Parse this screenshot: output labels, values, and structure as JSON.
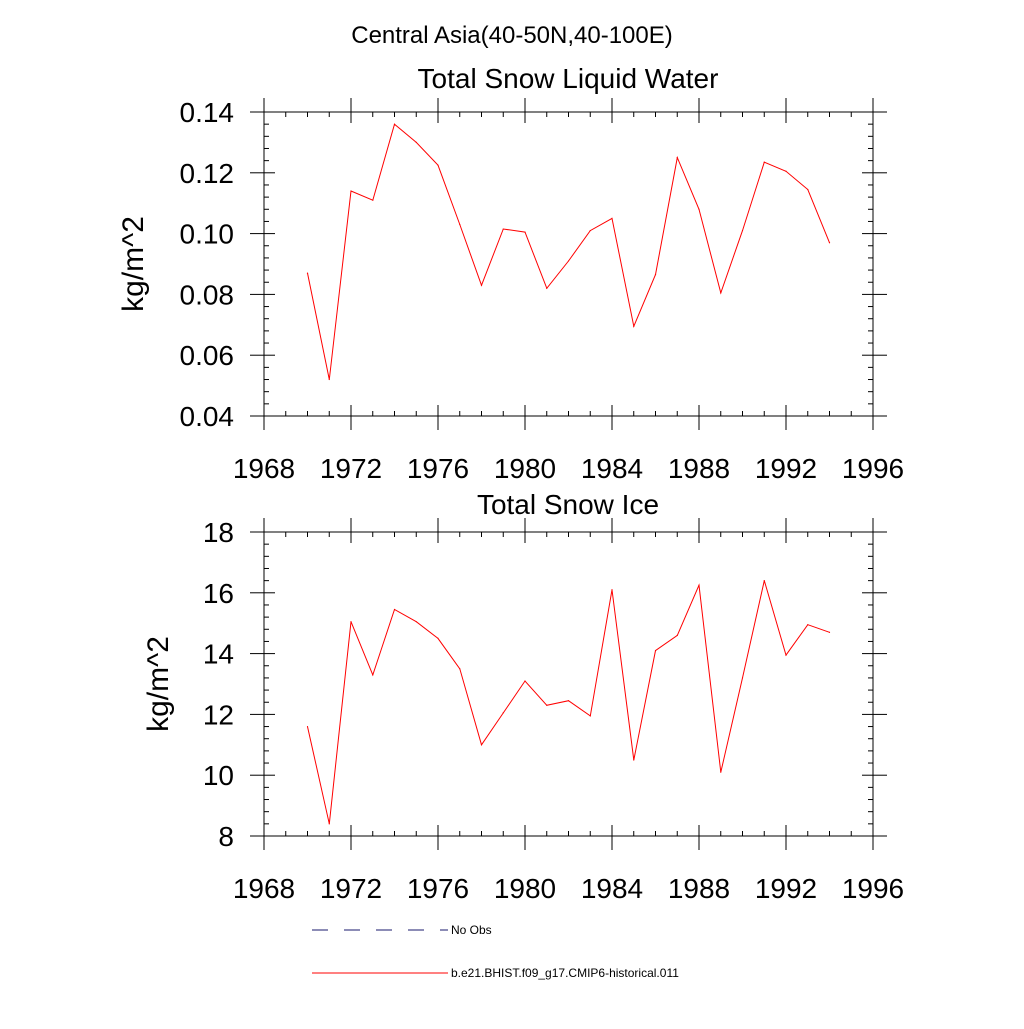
{
  "figure": {
    "title": "Central Asia(40-50N,40-100E)"
  },
  "chart_data": [
    {
      "type": "line",
      "title": "Total Snow Liquid Water",
      "xlabel": "",
      "ylabel": "kg/m^2",
      "xlim": [
        1968,
        1996
      ],
      "ylim": [
        0.04,
        0.14
      ],
      "xticks": [
        1968,
        1972,
        1976,
        1980,
        1984,
        1988,
        1992,
        1996
      ],
      "xticklabels": [
        "1968",
        "1972",
        "1976",
        "1980",
        "1984",
        "1988",
        "1992",
        "1996"
      ],
      "yticks": [
        0.04,
        0.06,
        0.08,
        0.1,
        0.12,
        0.14
      ],
      "yticklabels": [
        "0.04",
        "0.06",
        "0.08",
        "0.10",
        "0.12",
        "0.14"
      ],
      "grid": false,
      "x": [
        1970,
        1971,
        1972,
        1973,
        1974,
        1975,
        1976,
        1977,
        1978,
        1979,
        1980,
        1981,
        1982,
        1983,
        1984,
        1985,
        1986,
        1987,
        1988,
        1989,
        1990,
        1991,
        1992,
        1993,
        1994
      ],
      "series": [
        {
          "name": "b.e21.BHIST.f09_g17.CMIP6-historical.011",
          "color": "#ff0000",
          "values": [
            0.087,
            0.052,
            0.114,
            0.111,
            0.136,
            0.13,
            0.1225,
            0.103,
            0.083,
            0.1015,
            0.1005,
            0.082,
            0.091,
            0.101,
            0.105,
            0.0695,
            0.0865,
            0.125,
            0.108,
            0.0805,
            0.101,
            0.1235,
            0.1205,
            0.1145,
            0.097
          ]
        }
      ]
    },
    {
      "type": "line",
      "title": "Total Snow Ice",
      "xlabel": "",
      "ylabel": "kg/m^2",
      "xlim": [
        1968,
        1996
      ],
      "ylim": [
        8,
        18
      ],
      "xticks": [
        1968,
        1972,
        1976,
        1980,
        1984,
        1988,
        1992,
        1996
      ],
      "xticklabels": [
        "1968",
        "1972",
        "1976",
        "1980",
        "1984",
        "1988",
        "1992",
        "1996"
      ],
      "yticks": [
        8,
        10,
        12,
        14,
        16,
        18
      ],
      "yticklabels": [
        "8",
        "10",
        "12",
        "14",
        "16",
        "18"
      ],
      "grid": false,
      "x": [
        1970,
        1971,
        1972,
        1973,
        1974,
        1975,
        1976,
        1977,
        1978,
        1979,
        1980,
        1981,
        1982,
        1983,
        1984,
        1985,
        1986,
        1987,
        1988,
        1989,
        1990,
        1991,
        1992,
        1993,
        1994
      ],
      "series": [
        {
          "name": "b.e21.BHIST.f09_g17.CMIP6-historical.011",
          "color": "#ff0000",
          "values": [
            11.6,
            8.4,
            15.05,
            13.3,
            15.45,
            15.05,
            14.5,
            13.5,
            11.0,
            12.05,
            13.1,
            12.3,
            12.45,
            11.95,
            16.1,
            10.5,
            14.1,
            14.6,
            16.25,
            10.1,
            13.2,
            16.4,
            13.95,
            14.95,
            14.7
          ]
        }
      ]
    }
  ],
  "legend": {
    "placement": "bottom",
    "items": [
      {
        "label": "No Obs",
        "color": "#1a1a6e",
        "dash": "dashed"
      },
      {
        "label": "b.e21.BHIST.f09_g17.CMIP6-historical.011",
        "color": "#ff0000",
        "dash": "solid"
      }
    ]
  }
}
